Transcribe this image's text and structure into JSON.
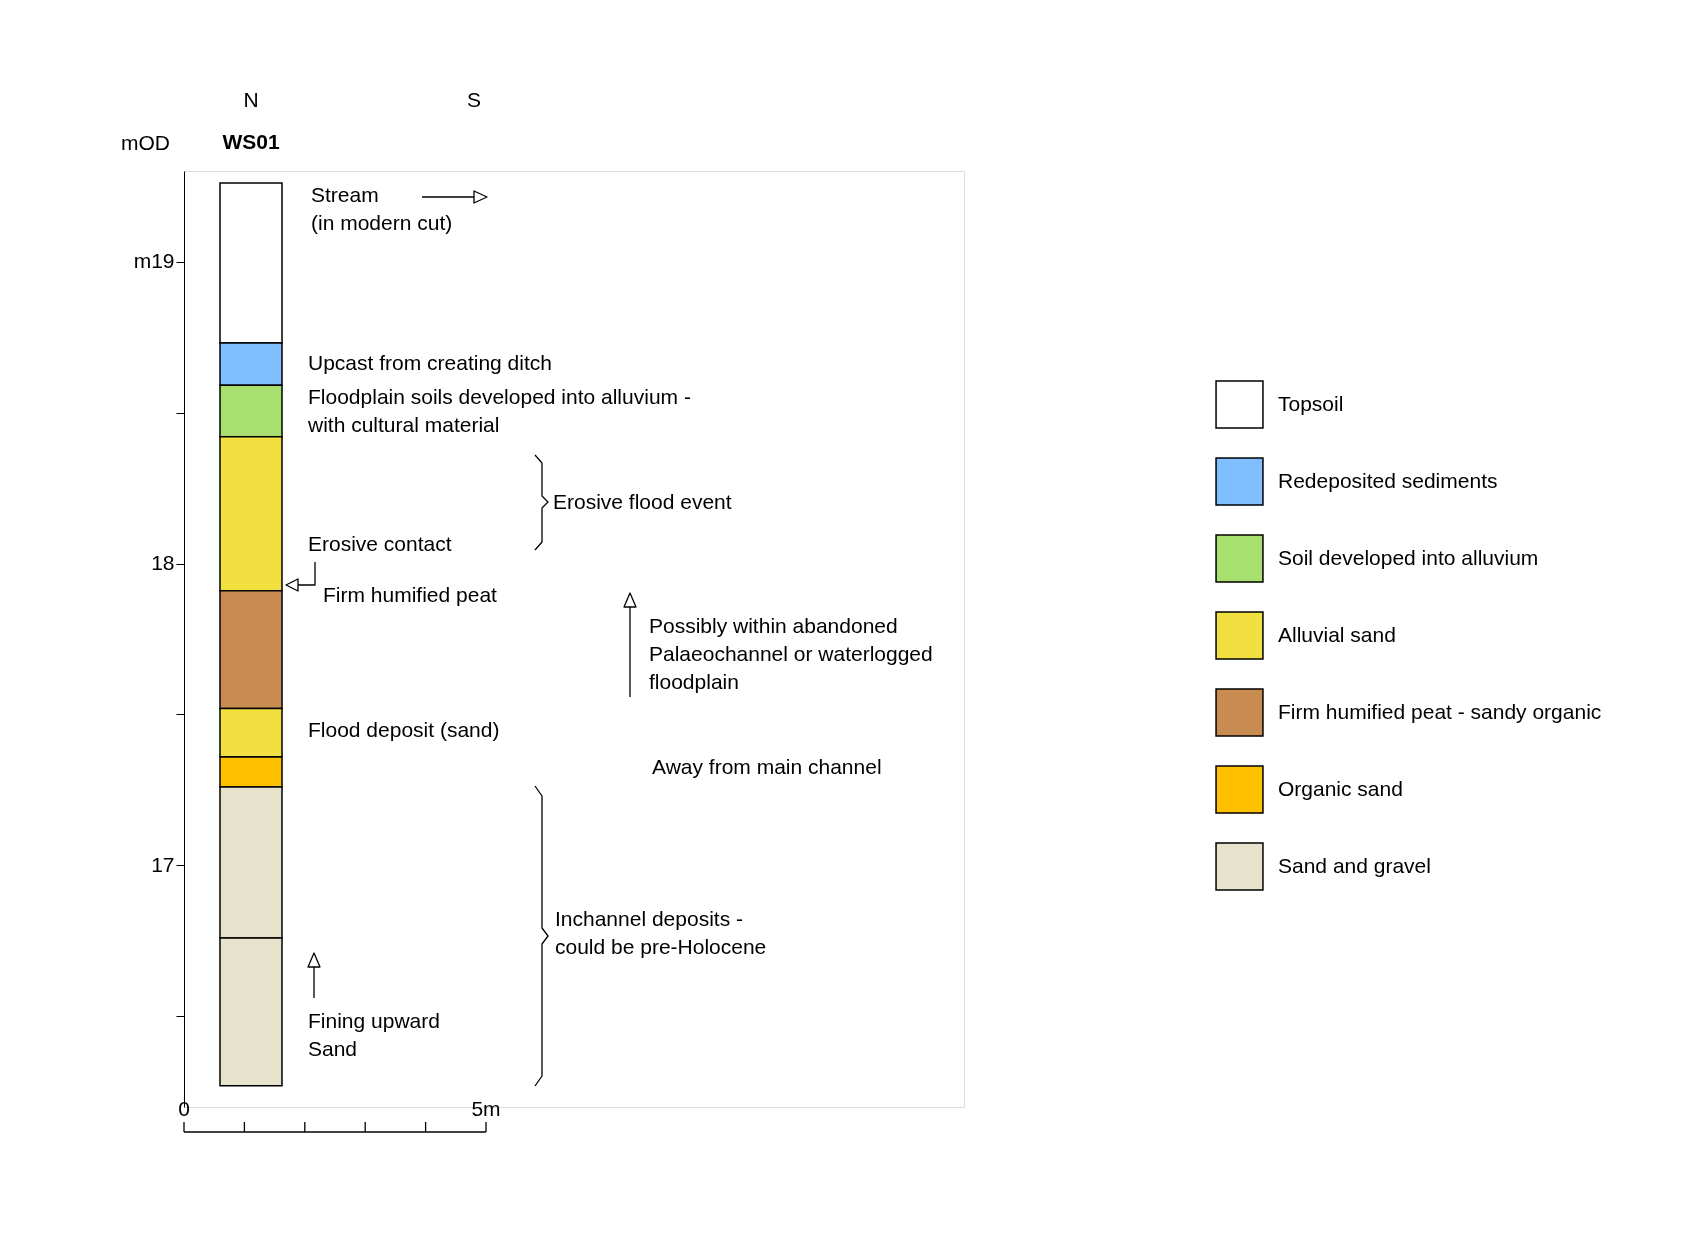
{
  "chart_data": {
    "type": "bar",
    "categories": [
      "WS01"
    ],
    "ylabel": "mOD",
    "ylim": [
      16.2,
      19.3
    ],
    "yticks": [
      {
        "value": 16.5,
        "label": null
      },
      17,
      {
        "value": 17.5,
        "label": null
      },
      18,
      {
        "value": 18.5,
        "label": null
      },
      {
        "value": 19,
        "label": "m19"
      }
    ],
    "series": [
      {
        "name": "Topsoil",
        "color": "#ffffff",
        "base": [
          18.73
        ],
        "values": [
          0.53
        ]
      },
      {
        "name": "Redeposited sediments",
        "color": "#7fbfff",
        "base": [
          18.59
        ],
        "values": [
          0.14
        ]
      },
      {
        "name": "Soil developed into alluvium",
        "color": "#a8e070",
        "base": [
          18.42
        ],
        "values": [
          0.17
        ]
      },
      {
        "name": "Alluvial sand",
        "color": "#f2e040",
        "base": [
          17.91
        ],
        "values": [
          0.51
        ]
      },
      {
        "name": "Firm humified peat - sandy organic",
        "color": "#c98c50",
        "base": [
          17.52
        ],
        "values": [
          0.39
        ]
      },
      {
        "name": "Organic sand",
        "color": "#ffc000",
        "base": [
          17.26
        ],
        "values": [
          0.1
        ]
      },
      {
        "name": "Sand and gravel",
        "color": "#e6e2cc",
        "base": [
          16.76
        ],
        "values": [
          0.5
        ]
      },
      {
        "color": "#f2e040",
        "base": [
          17.36
        ],
        "values": [
          0.16
        ]
      },
      {
        "color": "#e6e2cc",
        "base": [
          16.27
        ],
        "values": [
          0.49
        ]
      }
    ],
    "annotations": [
      "N",
      "S",
      "Stream\n(in modern cut)",
      "Upcast from creating ditch",
      "Floodplain soils developed into alluvium -\nwith cultural material",
      "Erosive flood event",
      "Erosive contact",
      "Firm humified peat",
      "Possibly within abandoned\nPalaeochannel or waterlogged\nfloodplain",
      "Flood deposit (sand)",
      "Away from main channel",
      "Inchannel deposits -\ncould be pre-Holocene",
      "Fining upward\nSand",
      "0",
      "5m"
    ],
    "legend": "right",
    "grid": false
  }
}
